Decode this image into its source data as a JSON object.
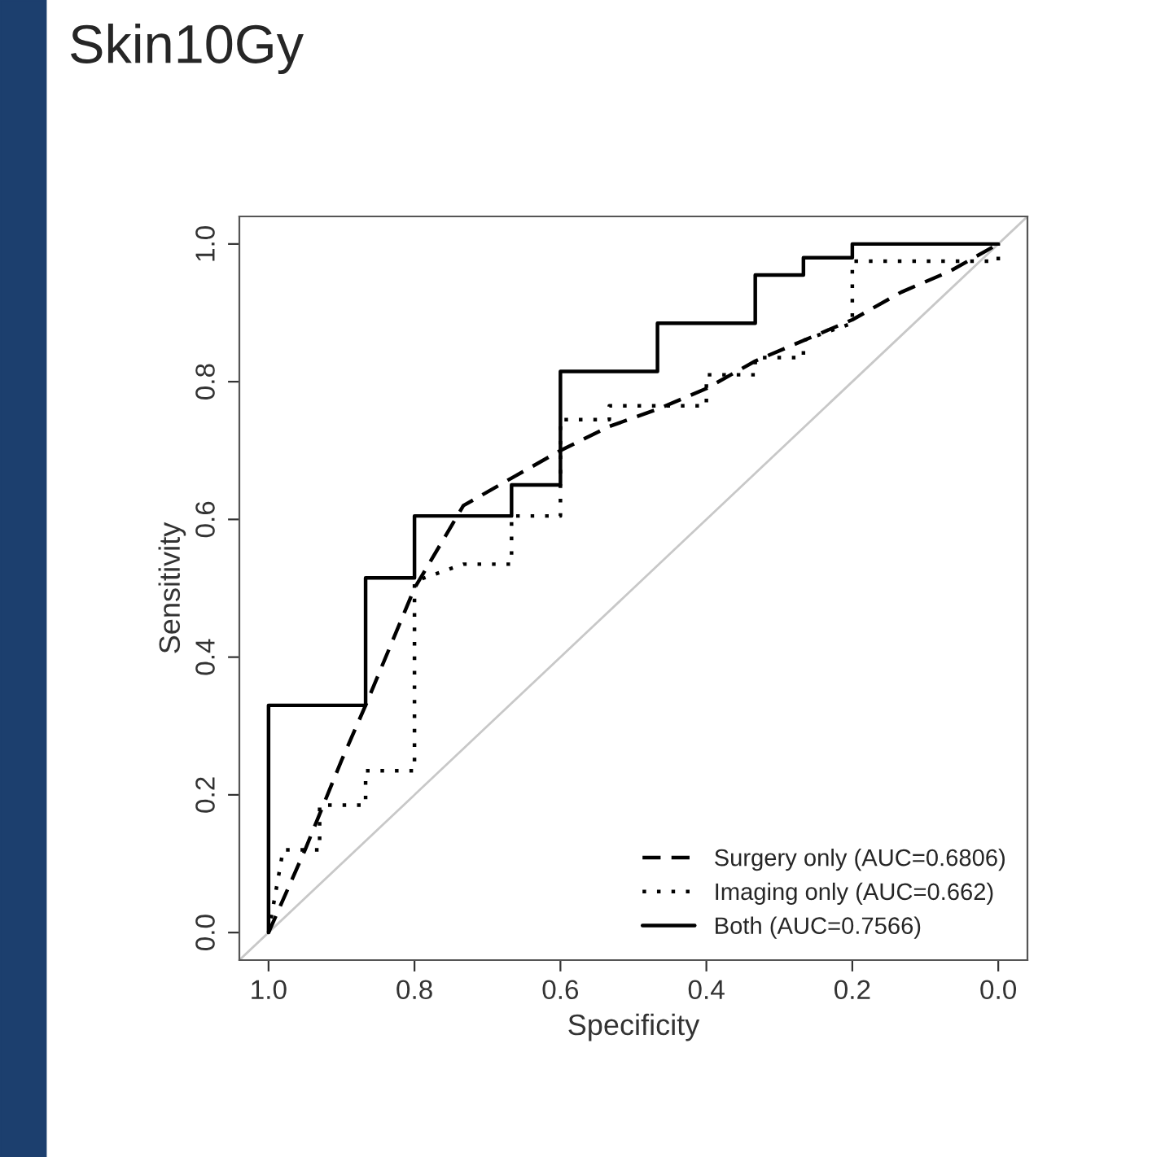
{
  "chart_data": {
    "type": "line",
    "title": "Skin10Gy",
    "xlabel": "Specificity",
    "ylabel": "Sensitivity",
    "xlim": [
      1.04,
      -0.04
    ],
    "ylim": [
      -0.04,
      1.04
    ],
    "xticks": [
      {
        "value": 1,
        "label": "1.0"
      },
      {
        "value": 0.8,
        "label": "0.8"
      },
      {
        "value": 0.6,
        "label": "0.6"
      },
      {
        "value": 0.4,
        "label": "0.4"
      },
      {
        "value": 0.2,
        "label": "0.2"
      },
      {
        "value": 0,
        "label": "0.0"
      }
    ],
    "yticks": [
      {
        "value": 0,
        "label": "0.0"
      },
      {
        "value": 0.2,
        "label": "0.2"
      },
      {
        "value": 0.4,
        "label": "0.4"
      },
      {
        "value": 0.6,
        "label": "0.6"
      },
      {
        "value": 0.8,
        "label": "0.8"
      },
      {
        "value": 1,
        "label": "1.0"
      }
    ],
    "grid": false,
    "legend": "bottom right",
    "series": [
      {
        "color": "#c8c8c8",
        "line_style": "solid",
        "x": [
          1.04,
          -0.04
        ],
        "values": [
          -0.04,
          1.04
        ]
      },
      {
        "name": "Surgery only (AUC=0.6806)",
        "color": "#000000",
        "line_style": "dashed",
        "x": [
          1.0,
          0.95,
          0.9,
          0.867,
          0.8,
          0.733,
          0.667,
          0.6,
          0.533,
          0.467,
          0.4,
          0.333,
          0.2,
          0.133,
          0.067,
          0.0
        ],
        "values": [
          0.0,
          0.12,
          0.25,
          0.33,
          0.5,
          0.62,
          0.66,
          0.7,
          0.735,
          0.76,
          0.79,
          0.83,
          0.89,
          0.93,
          0.96,
          1.0
        ]
      },
      {
        "name": "Imaging only (AUC=0.662)",
        "color": "#000000",
        "line_style": "dotted",
        "x": [
          1.0,
          0.98,
          0.93,
          0.93,
          0.867,
          0.867,
          0.8,
          0.8,
          0.733,
          0.667,
          0.667,
          0.6,
          0.6,
          0.533,
          0.533,
          0.4,
          0.4,
          0.333,
          0.333,
          0.267,
          0.267,
          0.2,
          0.2,
          0.0,
          0.0
        ],
        "values": [
          0.0,
          0.12,
          0.12,
          0.185,
          0.185,
          0.235,
          0.235,
          0.51,
          0.535,
          0.535,
          0.605,
          0.605,
          0.745,
          0.745,
          0.765,
          0.765,
          0.81,
          0.81,
          0.835,
          0.835,
          0.86,
          0.885,
          0.975,
          0.975,
          1.0
        ]
      },
      {
        "name": "Both (AUC=0.7566)",
        "color": "#000000",
        "line_style": "solid",
        "x": [
          1.0,
          1.0,
          0.867,
          0.867,
          0.8,
          0.8,
          0.667,
          0.667,
          0.6,
          0.6,
          0.467,
          0.467,
          0.333,
          0.333,
          0.267,
          0.267,
          0.2,
          0.2,
          0.0
        ],
        "values": [
          0.0,
          0.33,
          0.33,
          0.515,
          0.515,
          0.605,
          0.605,
          0.65,
          0.65,
          0.815,
          0.815,
          0.885,
          0.885,
          0.955,
          0.955,
          0.98,
          0.98,
          1.0,
          1.0
        ]
      }
    ]
  }
}
